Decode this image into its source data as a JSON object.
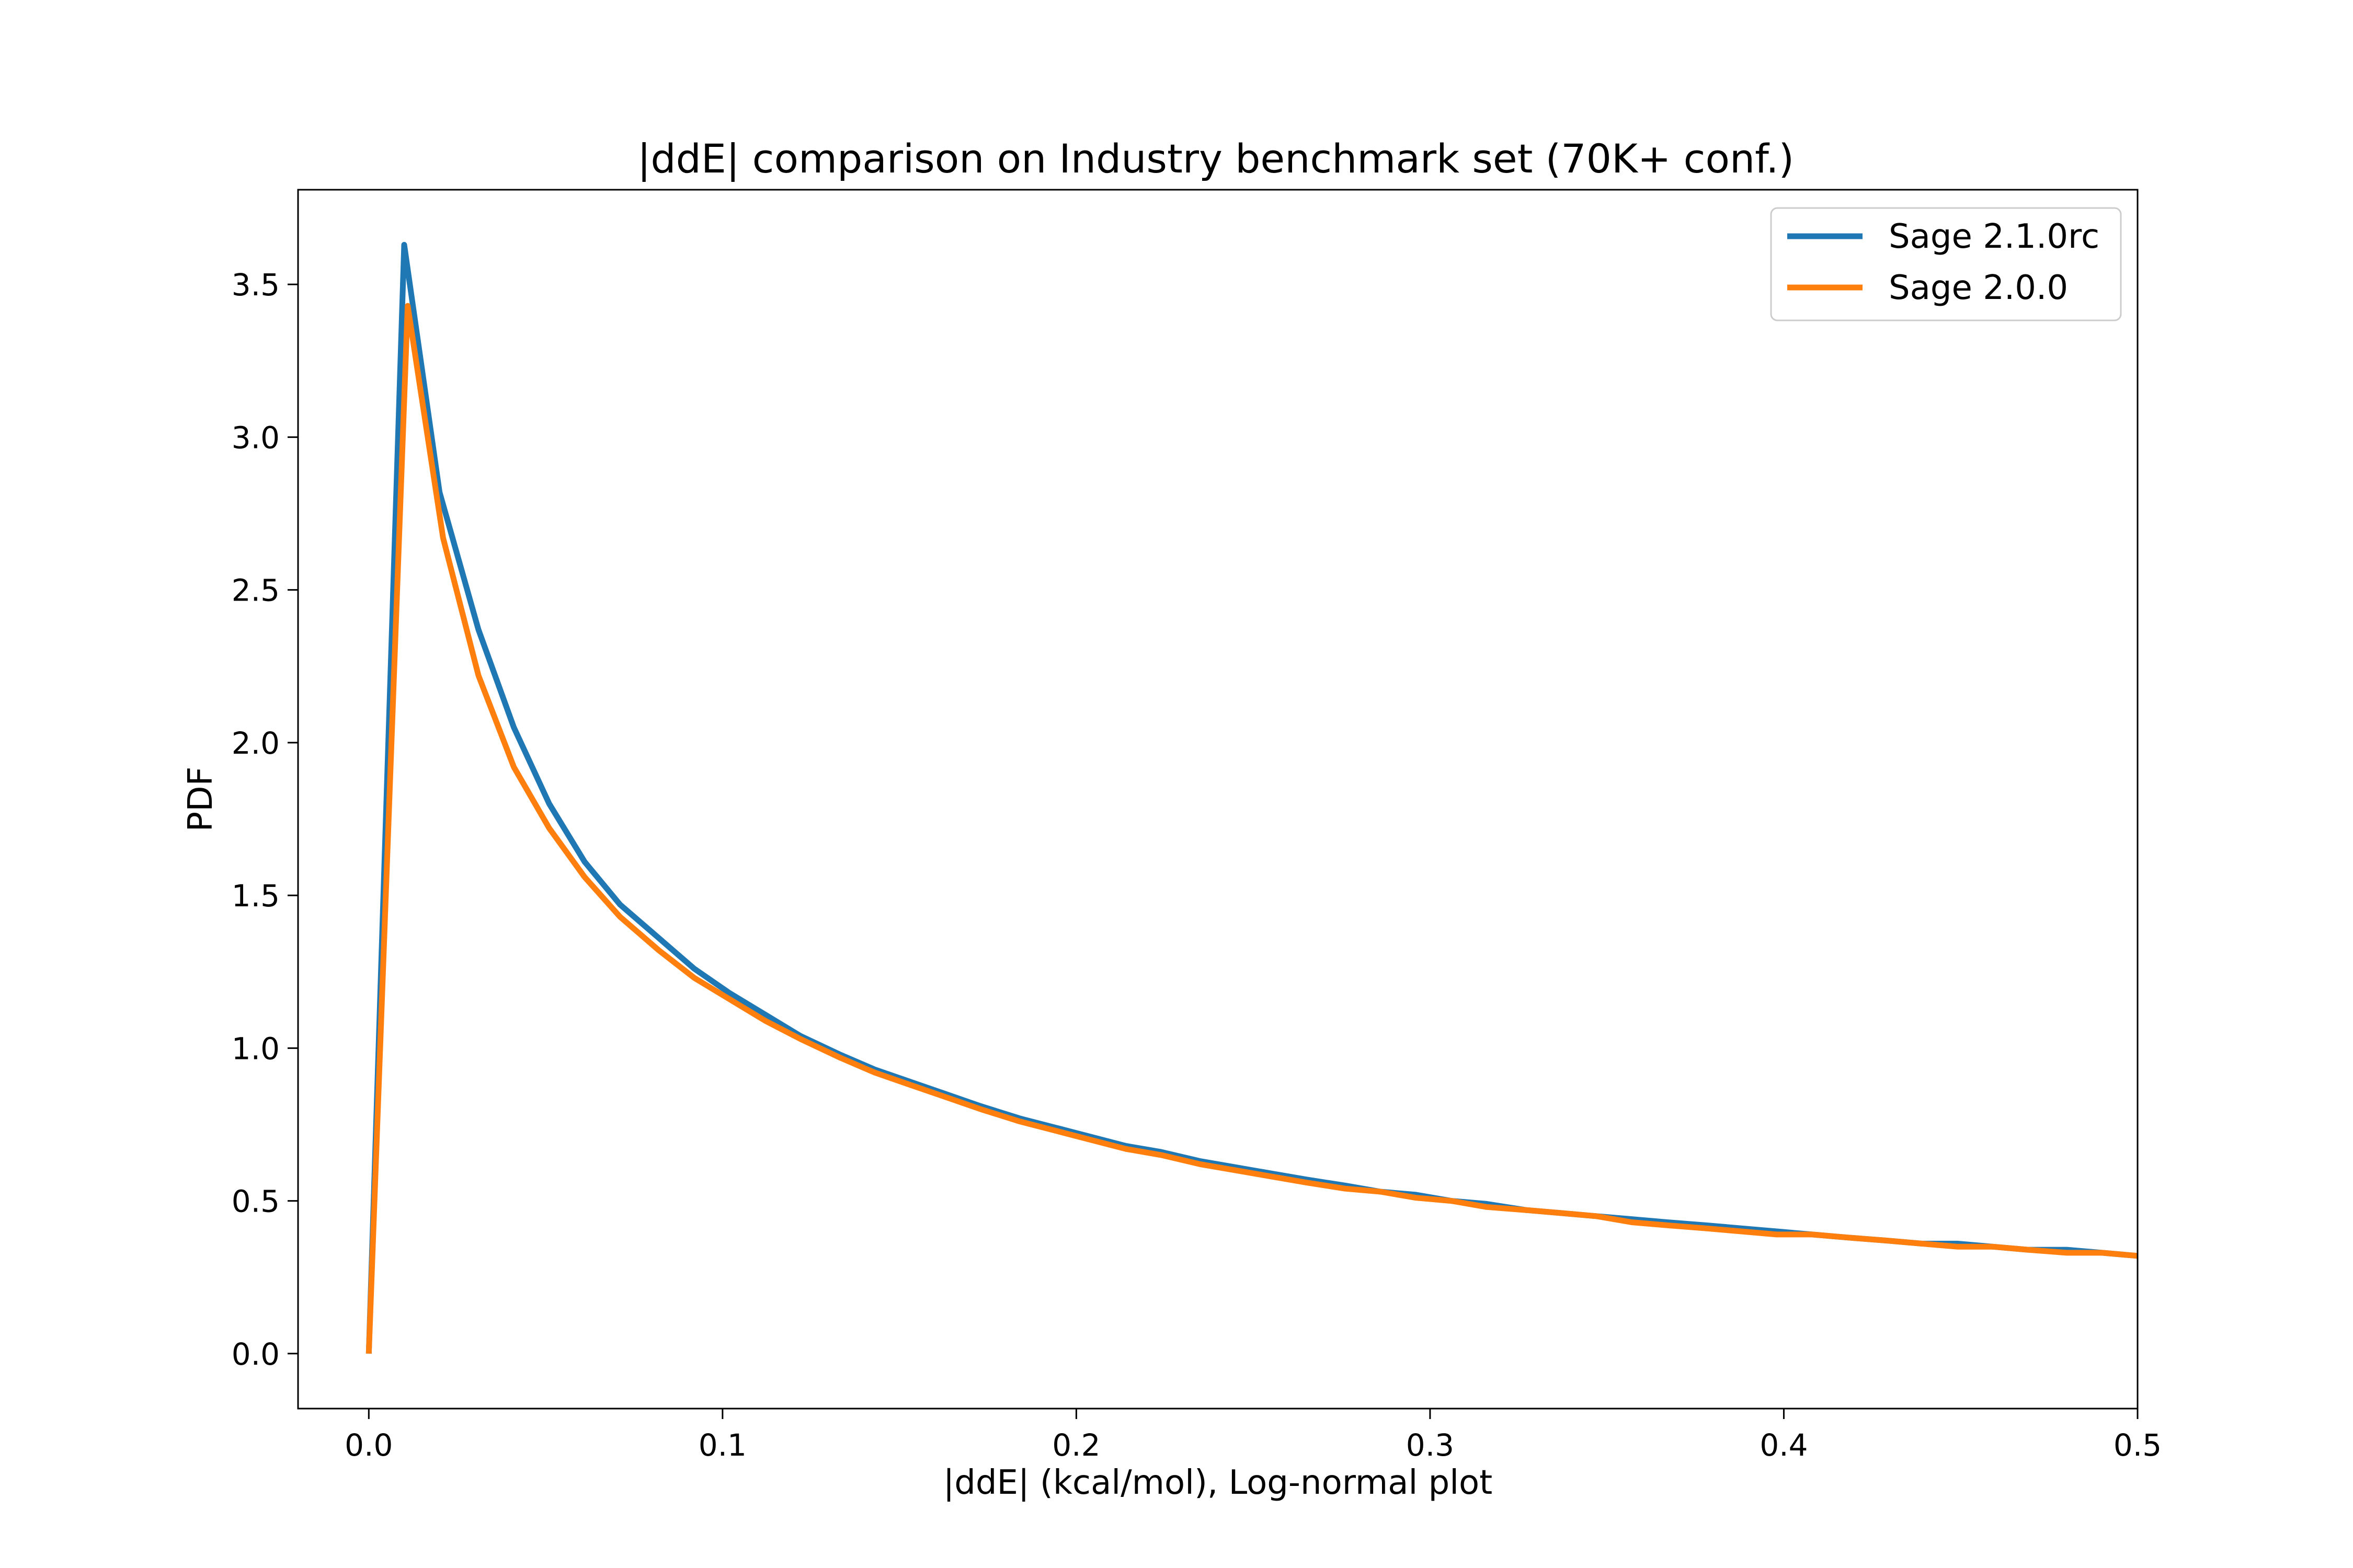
{
  "chart_data": {
    "type": "line",
    "title": "|ddE| comparison on Industry benchmark set (70K+ conf.)",
    "xlabel": "|ddE| (kcal/mol), Log-normal plot",
    "ylabel": "PDF",
    "xlim": [
      -0.02,
      0.5
    ],
    "ylim": [
      -0.18,
      3.81
    ],
    "xticks": [
      {
        "value": 0.0,
        "label": "0.0"
      },
      {
        "value": 0.1,
        "label": "0.1"
      },
      {
        "value": 0.2,
        "label": "0.2"
      },
      {
        "value": 0.3,
        "label": "0.3"
      },
      {
        "value": 0.4,
        "label": "0.4"
      },
      {
        "value": 0.5,
        "label": "0.5"
      }
    ],
    "yticks": [
      {
        "value": 0.0,
        "label": "0.0"
      },
      {
        "value": 0.5,
        "label": "0.5"
      },
      {
        "value": 1.0,
        "label": "1.0"
      },
      {
        "value": 1.5,
        "label": "1.5"
      },
      {
        "value": 2.0,
        "label": "2.0"
      },
      {
        "value": 2.5,
        "label": "2.5"
      },
      {
        "value": 3.0,
        "label": "3.0"
      },
      {
        "value": 3.5,
        "label": "3.5"
      }
    ],
    "grid": false,
    "legend_position": "top-right",
    "series": [
      {
        "name": "Sage 2.1.0rc",
        "color": "#1f77b4",
        "x": [
          0.0,
          0.01,
          0.02,
          0.031,
          0.041,
          0.051,
          0.061,
          0.071,
          0.082,
          0.092,
          0.102,
          0.112,
          0.122,
          0.133,
          0.143,
          0.153,
          0.163,
          0.173,
          0.184,
          0.194,
          0.204,
          0.214,
          0.224,
          0.235,
          0.245,
          0.255,
          0.265,
          0.276,
          0.286,
          0.296,
          0.306,
          0.316,
          0.327,
          0.337,
          0.347,
          0.357,
          0.367,
          0.378,
          0.388,
          0.398,
          0.408,
          0.418,
          0.429,
          0.439,
          0.449,
          0.459,
          0.469,
          0.48,
          0.49,
          0.5
        ],
        "y": [
          0.0,
          3.63,
          2.82,
          2.37,
          2.05,
          1.8,
          1.61,
          1.47,
          1.36,
          1.26,
          1.18,
          1.11,
          1.04,
          0.98,
          0.93,
          0.89,
          0.85,
          0.81,
          0.77,
          0.74,
          0.71,
          0.68,
          0.66,
          0.63,
          0.61,
          0.59,
          0.57,
          0.55,
          0.53,
          0.52,
          0.5,
          0.49,
          0.47,
          0.46,
          0.45,
          0.44,
          0.43,
          0.42,
          0.41,
          0.4,
          0.39,
          0.38,
          0.37,
          0.36,
          0.36,
          0.35,
          0.34,
          0.34,
          0.33,
          0.32
        ]
      },
      {
        "name": "Sage 2.0.0",
        "color": "#ff7f0e",
        "x": [
          0.0,
          0.011,
          0.021,
          0.031,
          0.041,
          0.051,
          0.061,
          0.071,
          0.082,
          0.092,
          0.102,
          0.112,
          0.122,
          0.133,
          0.143,
          0.153,
          0.163,
          0.173,
          0.184,
          0.194,
          0.204,
          0.214,
          0.224,
          0.235,
          0.245,
          0.255,
          0.265,
          0.276,
          0.286,
          0.296,
          0.306,
          0.316,
          0.327,
          0.337,
          0.347,
          0.357,
          0.367,
          0.378,
          0.388,
          0.398,
          0.408,
          0.418,
          0.429,
          0.439,
          0.449,
          0.459,
          0.469,
          0.48,
          0.49,
          0.5
        ],
        "y": [
          0.0,
          3.43,
          2.67,
          2.22,
          1.92,
          1.72,
          1.56,
          1.43,
          1.32,
          1.23,
          1.16,
          1.09,
          1.03,
          0.97,
          0.92,
          0.88,
          0.84,
          0.8,
          0.76,
          0.73,
          0.7,
          0.67,
          0.65,
          0.62,
          0.6,
          0.58,
          0.56,
          0.54,
          0.53,
          0.51,
          0.5,
          0.48,
          0.47,
          0.46,
          0.45,
          0.43,
          0.42,
          0.41,
          0.4,
          0.39,
          0.39,
          0.38,
          0.37,
          0.36,
          0.35,
          0.35,
          0.34,
          0.33,
          0.33,
          0.32
        ]
      }
    ]
  }
}
